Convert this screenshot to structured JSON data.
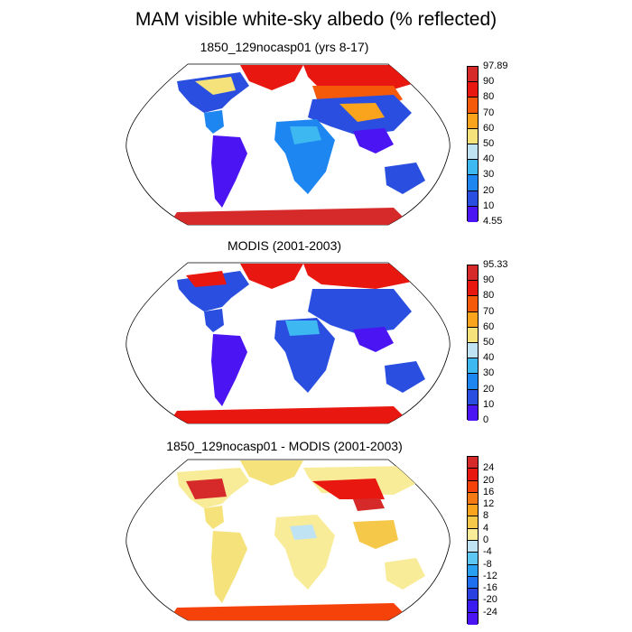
{
  "title": "MAM visible white-sky albedo (% reflected)",
  "panels": [
    {
      "title": "1850_129nocasp01 (yrs 8-17)",
      "labels": [
        "97.89",
        "90",
        "80",
        "70",
        "60",
        "50",
        "40",
        "30",
        "20",
        "10",
        "4.55"
      ],
      "colors": [
        "#d62a2a",
        "#e8170f",
        "#f55a0a",
        "#f9a41c",
        "#f5e27a",
        "#bfe3f2",
        "#3db8f0",
        "#1e86f0",
        "#2a4fe0",
        "#4b14f2"
      ]
    },
    {
      "title": "MODIS (2001-2003)",
      "labels": [
        "95.33",
        "90",
        "80",
        "70",
        "60",
        "50",
        "40",
        "30",
        "20",
        "10",
        "0"
      ],
      "colors": [
        "#d62a2a",
        "#e8170f",
        "#f55a0a",
        "#f9a41c",
        "#f5e27a",
        "#bfe3f2",
        "#3db8f0",
        "#1e86f0",
        "#2a4fe0",
        "#4b14f2"
      ]
    },
    {
      "title": "1850_129nocasp01 - MODIS (2001-2003)",
      "labels": [
        "24",
        "20",
        "16",
        "12",
        "8",
        "4",
        "0",
        "-4",
        "-8",
        "-12",
        "-16",
        "-20",
        "-24"
      ],
      "colors": [
        "#d62a2a",
        "#e8170f",
        "#f5420a",
        "#f57a14",
        "#f9a41c",
        "#f5c84a",
        "#f8ec98",
        "#bfe3f2",
        "#5cc7f2",
        "#2aa0f0",
        "#1e70f0",
        "#2a40e0",
        "#3a1cf0",
        "#4b14f2"
      ]
    }
  ]
}
